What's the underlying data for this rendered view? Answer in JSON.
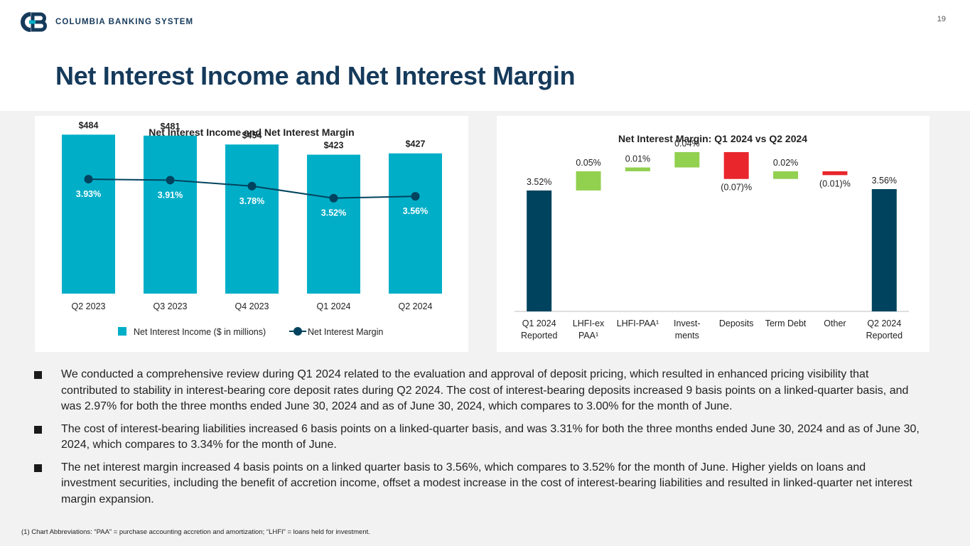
{
  "brand": {
    "company": "COLUMBIA BANKING SYSTEM",
    "logo_icon": "cb-logo-icon",
    "navy": "#153a5b",
    "teal": "#00aec7",
    "dark_teal": "#00435e",
    "green": "#92d050",
    "red": "#e8262c"
  },
  "page_number": "19",
  "title": "Net Interest Income and Net Interest Margin",
  "chart_data": [
    {
      "type": "bar",
      "title": "Net Interest Income and Net Interest Margin",
      "categories": [
        "Q2 2023",
        "Q3 2023",
        "Q4 2023",
        "Q1 2024",
        "Q2 2024"
      ],
      "ylim": [
        0,
        500
      ],
      "series": [
        {
          "name": "Net Interest Income ($ in millions)",
          "type": "bar",
          "values": [
            484,
            481,
            454,
            423,
            427
          ],
          "labels": [
            "$484",
            "$481",
            "$454",
            "$423",
            "$427"
          ]
        },
        {
          "name": "Net Interest Margin",
          "type": "line",
          "values": [
            3.93,
            3.91,
            3.78,
            3.52,
            3.56
          ],
          "labels": [
            "3.93%",
            "3.91%",
            "3.78%",
            "3.52%",
            "3.56%"
          ],
          "ylim": [
            2.5,
            4.5
          ]
        }
      ],
      "legend": [
        "Net Interest Income ($ in millions)",
        "Net Interest Margin"
      ],
      "legend_position": "bottom"
    },
    {
      "type": "waterfall",
      "title": "Net Interest Margin: Q1 2024 vs Q2 2024",
      "categories": [
        "Q1 2024 Reported",
        "LHFI-ex PAA¹",
        "LHFI-PAA¹",
        "Invest- ments",
        "Deposits",
        "Term Debt",
        "Other",
        "Q2 2024 Reported"
      ],
      "category_lines": [
        [
          "Q1 2024",
          "Reported"
        ],
        [
          "LHFI-ex",
          "PAA¹"
        ],
        [
          "LHFI-PAA¹"
        ],
        [
          "Invest-",
          "ments"
        ],
        [
          "Deposits"
        ],
        [
          "Term Debt"
        ],
        [
          "Other"
        ],
        [
          "Q2 2024",
          "Reported"
        ]
      ],
      "values": [
        3.52,
        0.05,
        0.01,
        0.04,
        -0.07,
        0.02,
        -0.01,
        3.56
      ],
      "kinds": [
        "total",
        "delta",
        "delta",
        "delta",
        "delta",
        "delta",
        "delta",
        "total"
      ],
      "labels": [
        "3.52%",
        "0.05%",
        "0.01%",
        "0.04%",
        "(0.07)%",
        "0.02%",
        "(0.01)%",
        "3.56%"
      ]
    }
  ],
  "bullets": [
    "We conducted a comprehensive review during Q1 2024 related to the evaluation and approval of deposit pricing, which resulted in enhanced pricing visibility that contributed to stability in interest-bearing core deposit rates during Q2 2024. The cost of interest-bearing deposits increased 9 basis points on a linked-quarter basis, and was 2.97% for both the three months ended June 30, 2024 and as of June 30, 2024, which compares to 3.00% for the month of June.",
    "The cost of interest-bearing liabilities increased 6 basis points on a linked-quarter basis, and was 3.31% for both the three months ended June 30, 2024 and as of June 30, 2024, which compares to 3.34% for the month of June.",
    "The net interest margin increased 4 basis points on a linked quarter basis to 3.56%, which compares to 3.52% for the month of June. Higher yields on loans and investment securities, including the benefit of accretion income, offset a modest increase in the cost of interest-bearing liabilities and resulted in linked-quarter net interest margin expansion."
  ],
  "footnote": "(1)  Chart Abbreviations: “PAA” = purchase accounting accretion and amortization; “LHFI” = loans held for investment."
}
